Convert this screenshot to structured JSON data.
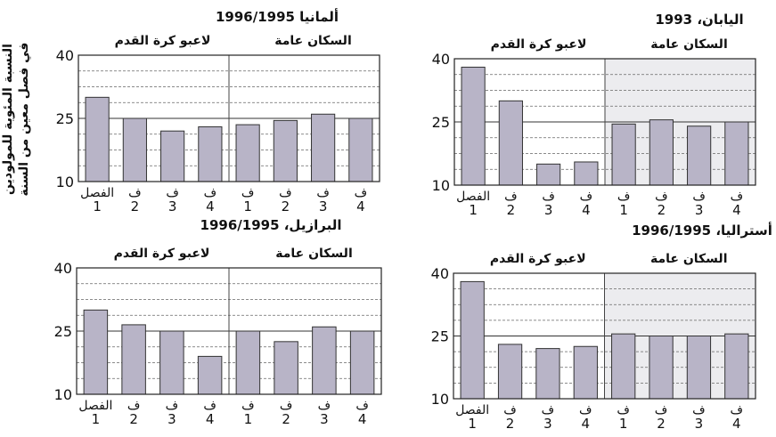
{
  "figure": {
    "ylabel_line1": "النسبة المئوية للمولودين",
    "ylabel_line2": "في فصل معين من السنة"
  },
  "chart_data": [
    {
      "type": "bar",
      "title": "ألمانيا 1996/1995",
      "groups": [
        "لاعبو كرة القدم",
        "السكان عامة"
      ],
      "ylim": [
        10,
        40
      ],
      "yticks": [
        10,
        25,
        40
      ],
      "categories_top": [
        "الفصل",
        "ف",
        "ف",
        "ف",
        "ف",
        "ف",
        "ف",
        "ف"
      ],
      "categories_bottom": [
        "1",
        "2",
        "3",
        "4",
        "1",
        "2",
        "3",
        "4"
      ],
      "values": [
        30,
        25,
        22,
        23,
        23.5,
        24.5,
        26,
        25
      ]
    },
    {
      "type": "bar",
      "title": "اليابان، 1993",
      "groups": [
        "لاعبو كرة القدم",
        "السكان عامة"
      ],
      "ylim": [
        10,
        40
      ],
      "yticks": [
        10,
        25,
        40
      ],
      "categories_top": [
        "الفصل",
        "ف",
        "ف",
        "ف",
        "ف",
        "ف",
        "ف",
        "ف"
      ],
      "categories_bottom": [
        "1",
        "2",
        "3",
        "4",
        "1",
        "2",
        "3",
        "4"
      ],
      "values": [
        38,
        30,
        15,
        15.5,
        24.5,
        25.5,
        24,
        25
      ]
    },
    {
      "type": "bar",
      "title": "البرازيل، 1996/1995",
      "groups": [
        "لاعبو كرة القدم",
        "السكان عامة"
      ],
      "ylim": [
        10,
        40
      ],
      "yticks": [
        10,
        25,
        40
      ],
      "categories_top": [
        "الفصل",
        "ف",
        "ف",
        "ف",
        "ف",
        "ف",
        "ف",
        "ف"
      ],
      "categories_bottom": [
        "1",
        "2",
        "3",
        "4",
        "1",
        "2",
        "3",
        "4"
      ],
      "values": [
        30,
        26.5,
        25,
        19,
        25,
        22.5,
        26,
        25
      ]
    },
    {
      "type": "bar",
      "title": "أستراليا، 1996/1995",
      "groups": [
        "لاعبو كرة القدم",
        "السكان عامة"
      ],
      "ylim": [
        10,
        40
      ],
      "yticks": [
        10,
        25,
        40
      ],
      "categories_top": [
        "الفصل",
        "ف",
        "ف",
        "ف",
        "ف",
        "ف",
        "ف",
        "ف"
      ],
      "categories_bottom": [
        "1",
        "2",
        "3",
        "4",
        "1",
        "2",
        "3",
        "4"
      ],
      "values": [
        38,
        23,
        22,
        22.5,
        25.5,
        25,
        25,
        25.5
      ]
    }
  ]
}
